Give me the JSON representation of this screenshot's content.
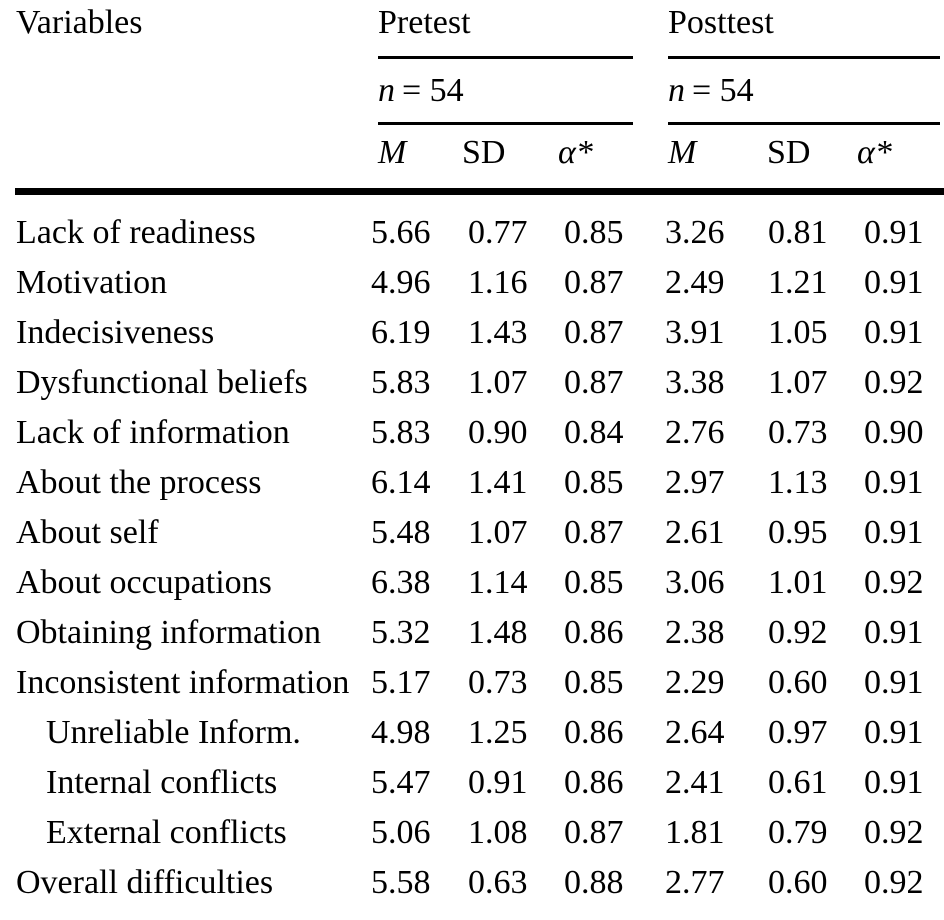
{
  "page": {
    "background_color": "#ffffff",
    "text_color": "#000000"
  },
  "table": {
    "header": {
      "variables_label": "Variables",
      "pretest": {
        "label": "Pretest",
        "n_symbol": "n",
        "n_value": "= 54"
      },
      "posttest": {
        "label": "Posttest",
        "n_symbol": "n",
        "n_value": "= 54"
      },
      "stat_columns": [
        "M",
        "SD",
        "α*"
      ]
    },
    "rows": [
      {
        "label": "Lack of readiness",
        "indent": false,
        "pretest": {
          "m": "5.66",
          "sd": "0.77",
          "alpha": "0.85"
        },
        "posttest": {
          "m": "3.26",
          "sd": "0.81",
          "alpha": "0.91"
        }
      },
      {
        "label": "Motivation",
        "indent": false,
        "pretest": {
          "m": "4.96",
          "sd": "1.16",
          "alpha": "0.87"
        },
        "posttest": {
          "m": "2.49",
          "sd": "1.21",
          "alpha": "0.91"
        }
      },
      {
        "label": "Indecisiveness",
        "indent": false,
        "pretest": {
          "m": "6.19",
          "sd": "1.43",
          "alpha": "0.87"
        },
        "posttest": {
          "m": "3.91",
          "sd": "1.05",
          "alpha": "0.91"
        }
      },
      {
        "label": "Dysfunctional beliefs",
        "indent": false,
        "pretest": {
          "m": "5.83",
          "sd": "1.07",
          "alpha": "0.87"
        },
        "posttest": {
          "m": "3.38",
          "sd": "1.07",
          "alpha": "0.92"
        }
      },
      {
        "label": "Lack of information",
        "indent": false,
        "pretest": {
          "m": "5.83",
          "sd": "0.90",
          "alpha": "0.84"
        },
        "posttest": {
          "m": "2.76",
          "sd": "0.73",
          "alpha": "0.90"
        }
      },
      {
        "label": "About the process",
        "indent": false,
        "pretest": {
          "m": "6.14",
          "sd": "1.41",
          "alpha": "0.85"
        },
        "posttest": {
          "m": "2.97",
          "sd": "1.13",
          "alpha": "0.91"
        }
      },
      {
        "label": "About self",
        "indent": false,
        "pretest": {
          "m": "5.48",
          "sd": "1.07",
          "alpha": "0.87"
        },
        "posttest": {
          "m": "2.61",
          "sd": "0.95",
          "alpha": "0.91"
        }
      },
      {
        "label": "About occupations",
        "indent": false,
        "pretest": {
          "m": "6.38",
          "sd": "1.14",
          "alpha": "0.85"
        },
        "posttest": {
          "m": "3.06",
          "sd": "1.01",
          "alpha": "0.92"
        }
      },
      {
        "label": "Obtaining information",
        "indent": false,
        "pretest": {
          "m": "5.32",
          "sd": "1.48",
          "alpha": "0.86"
        },
        "posttest": {
          "m": "2.38",
          "sd": "0.92",
          "alpha": "0.91"
        }
      },
      {
        "label": "Inconsistent information",
        "indent": false,
        "pretest": {
          "m": "5.17",
          "sd": "0.73",
          "alpha": "0.85"
        },
        "posttest": {
          "m": "2.29",
          "sd": "0.60",
          "alpha": "0.91"
        }
      },
      {
        "label": "Unreliable Inform.",
        "indent": true,
        "pretest": {
          "m": "4.98",
          "sd": "1.25",
          "alpha": "0.86"
        },
        "posttest": {
          "m": "2.64",
          "sd": "0.97",
          "alpha": "0.91"
        }
      },
      {
        "label": "Internal conflicts",
        "indent": true,
        "pretest": {
          "m": "5.47",
          "sd": "0.91",
          "alpha": "0.86"
        },
        "posttest": {
          "m": "2.41",
          "sd": "0.61",
          "alpha": "0.91"
        }
      },
      {
        "label": "External conflicts",
        "indent": true,
        "pretest": {
          "m": "5.06",
          "sd": "1.08",
          "alpha": "0.87"
        },
        "posttest": {
          "m": "1.81",
          "sd": "0.79",
          "alpha": "0.92"
        }
      },
      {
        "label": "Overall difficulties",
        "indent": false,
        "pretest": {
          "m": "5.58",
          "sd": "0.63",
          "alpha": "0.88"
        },
        "posttest": {
          "m": "2.77",
          "sd": "0.60",
          "alpha": "0.92"
        }
      }
    ]
  }
}
